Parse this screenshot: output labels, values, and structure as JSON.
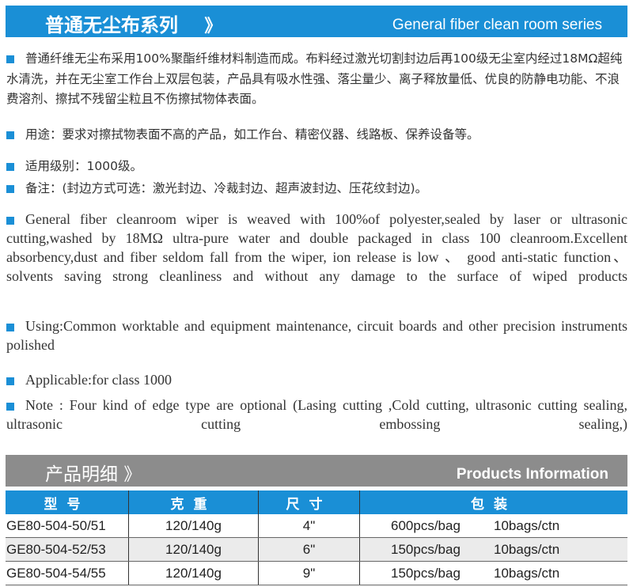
{
  "header": {
    "title_cn": "普通无尘布系列",
    "arrow": "》",
    "title_en": "General fiber clean room series"
  },
  "cn": {
    "desc": "普通纤维无尘布采用100%聚酯纤维材料制造而成。布料经过激光切割封边后再100级无尘室内经过18MΩ超纯水清洗，并在无尘室工作台上双层包装，产品具有吸水性强、落尘量少、离子释放量低、优良的防静电功能、不浪费溶剂、擦拭不残留尘粒且不伤擦拭物体表面。",
    "usage": "用途：要求对擦拭物表面不高的产品，如工作台、精密仪器、线路板、保养设备等。",
    "grade": "适用级别：1000级。",
    "note": "备注：(封边方式可选：激光封边、冷裁封边、超声波封边、压花纹封边)。"
  },
  "en": {
    "desc": "General fiber cleanroom wiper is weaved with 100%of polyester,sealed by laser or ultrasonic cutting,washed by 18MΩ ultra-pure water and double packaged in class 100 cleanroom.Excellent absorbency,dust and fiber seldom fall from the wiper, ion release is low 、 good anti-static function、solvents saving strong cleanliness and without any damage to the surface of wiped products",
    "usage": "Using:Common worktable and equipment maintenance, circuit boards and other precision instruments polished",
    "applicable": "Applicable:for class 1000",
    "note": "Note : Four kind of edge type are optional (Lasing cutting ,Cold cutting, ultrasonic cutting sealing, ultrasonic cutting embossing sealing,)"
  },
  "products": {
    "title_cn": "产品明细",
    "arrow": "》",
    "title_en": "Products Information",
    "headers": [
      "型号",
      "克重",
      "尺寸",
      "包装"
    ],
    "rows": [
      {
        "model": "GE80-504-50/51",
        "weight": "120/140g",
        "size": "4\"",
        "pcs": "600pcs/bag",
        "ctn": "10bags/ctn"
      },
      {
        "model": "GE80-504-52/53",
        "weight": "120/140g",
        "size": "6\"",
        "pcs": "150pcs/bag",
        "ctn": "10bags/ctn"
      },
      {
        "model": "GE80-504-54/55",
        "weight": "120/140g",
        "size": "9\"",
        "pcs": "150pcs/bag",
        "ctn": "10bags/ctn"
      }
    ]
  },
  "colors": {
    "accent": "#1a8fd6",
    "banner_gray": "#8c8c8c"
  }
}
